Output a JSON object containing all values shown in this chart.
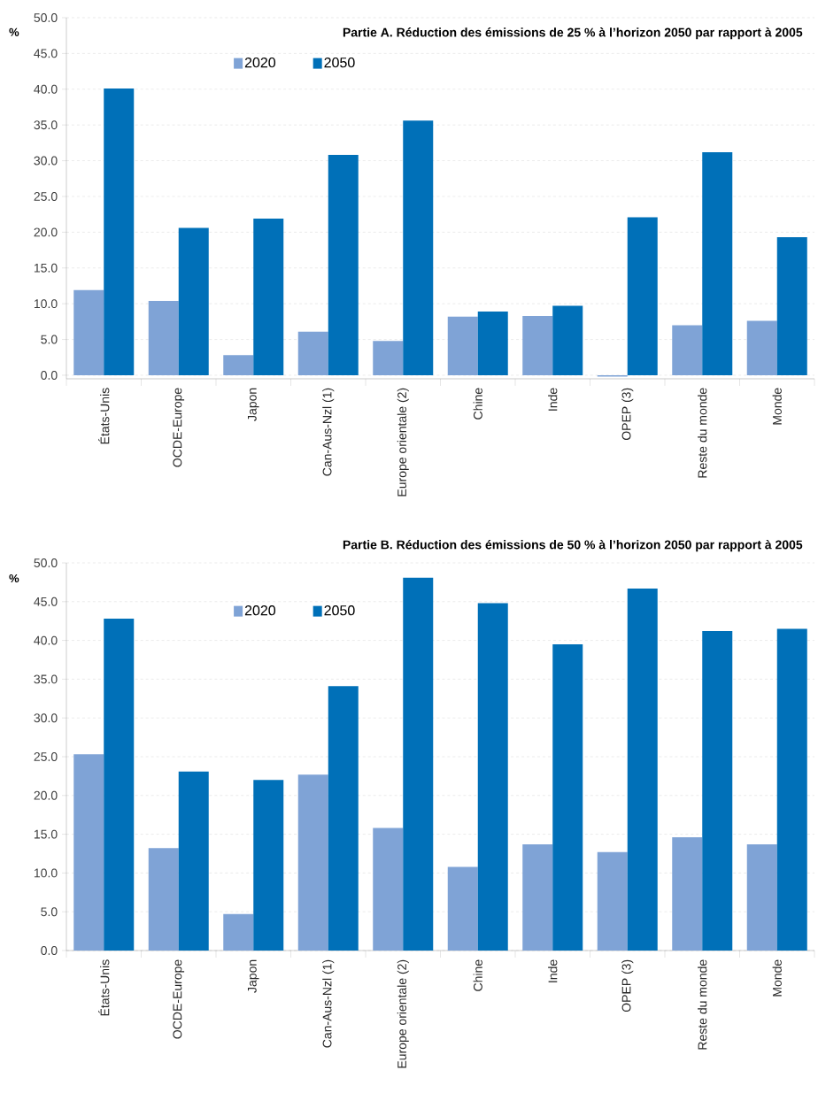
{
  "chart_data": [
    {
      "type": "bar",
      "title": "Partie A. Réduction des émissions de 25 % à l’horizon 2050 par rapport à 2005",
      "ylabel": "%",
      "categories": [
        "États-Unis",
        "OCDE-Europe",
        "Japon",
        "Can-Aus-Nzl (1)",
        "Europe orientale (2)",
        "Chine",
        "Inde",
        "OPEP (3)",
        "Reste du monde",
        "Monde"
      ],
      "series": [
        {
          "name": "2020",
          "color": "#7fa3d6",
          "values": [
            11.9,
            10.4,
            2.8,
            6.1,
            4.8,
            8.2,
            8.3,
            -0.2,
            7.0,
            7.6
          ]
        },
        {
          "name": "2050",
          "color": "#0070b8",
          "values": [
            40.1,
            20.6,
            21.9,
            30.8,
            35.6,
            8.9,
            9.7,
            22.1,
            31.2,
            19.3
          ]
        }
      ],
      "ylim": [
        -0.5,
        50
      ],
      "yticks": [
        {
          "value": 0,
          "label": "0.0"
        },
        {
          "value": 5,
          "label": "5.0"
        },
        {
          "value": 10,
          "label": "10.0"
        },
        {
          "value": 15,
          "label": "15.0"
        },
        {
          "value": 20,
          "label": "20.0"
        },
        {
          "value": 25,
          "label": "25.0"
        },
        {
          "value": 30,
          "label": "30.0"
        },
        {
          "value": 35,
          "label": "35.0"
        },
        {
          "value": 40,
          "label": "40.0"
        },
        {
          "value": 45,
          "label": "45.0"
        },
        {
          "value": 50,
          "label": "50.0"
        }
      ],
      "grid": "y",
      "legend": "top"
    },
    {
      "type": "bar",
      "title": "Partie B. Réduction des émissions de 50 % à l’horizon 2050 par rapport à 2005",
      "ylabel": "%",
      "categories": [
        "États-Unis",
        "OCDE-Europe",
        "Japon",
        "Can-Aus-Nzl (1)",
        "Europe orientale (2)",
        "Chine",
        "Inde",
        "OPEP (3)",
        "Reste du monde",
        "Monde"
      ],
      "series": [
        {
          "name": "2020",
          "color": "#7fa3d6",
          "values": [
            25.3,
            13.2,
            4.7,
            22.7,
            15.8,
            10.8,
            13.7,
            12.7,
            14.6,
            13.7
          ]
        },
        {
          "name": "2050",
          "color": "#0070b8",
          "values": [
            42.8,
            23.1,
            22.0,
            34.1,
            48.1,
            44.8,
            39.5,
            46.7,
            41.2,
            41.5
          ]
        }
      ],
      "ylim": [
        0,
        50
      ],
      "yticks": [
        {
          "value": 0,
          "label": "0.0"
        },
        {
          "value": 5,
          "label": "5.0"
        },
        {
          "value": 10,
          "label": "10.0"
        },
        {
          "value": 15,
          "label": "15.0"
        },
        {
          "value": 20,
          "label": "20.0"
        },
        {
          "value": 25,
          "label": "25.0"
        },
        {
          "value": 30,
          "label": "30.0"
        },
        {
          "value": 35,
          "label": "35.0"
        },
        {
          "value": 40,
          "label": "40.0"
        },
        {
          "value": 45,
          "label": "45.0"
        },
        {
          "value": 50,
          "label": "50.0"
        }
      ],
      "grid": "y",
      "legend": "top"
    }
  ]
}
